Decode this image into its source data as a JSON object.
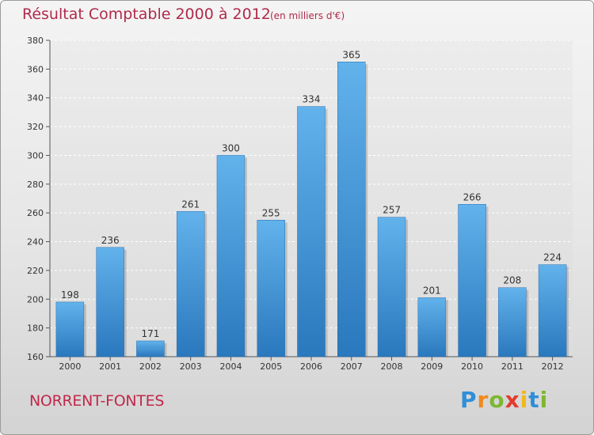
{
  "title": "Résultat Comptable 2000 à 2012",
  "subtitle": "(en milliers d'€)",
  "commune": "NORRENT-FONTES",
  "logo": {
    "letters": [
      "P",
      "r",
      "o",
      "x",
      "i",
      "t",
      "i"
    ],
    "colors": [
      "#2f8fd8",
      "#f08a1c",
      "#7cb82f",
      "#e23b2e",
      "#f0b81c",
      "#2f8fd8",
      "#7cb82f"
    ]
  },
  "chart_data": {
    "type": "bar",
    "title": "Résultat Comptable 2000 à 2012",
    "subtitle": "(en milliers d'€)",
    "categories": [
      "2000",
      "2001",
      "2002",
      "2003",
      "2004",
      "2005",
      "2006",
      "2007",
      "2008",
      "2009",
      "2010",
      "2011",
      "2012"
    ],
    "values": [
      198,
      236,
      171,
      261,
      300,
      255,
      334,
      365,
      257,
      201,
      266,
      208,
      224
    ],
    "ylim": [
      160,
      380
    ],
    "yticks": [
      160,
      180,
      200,
      220,
      240,
      260,
      280,
      300,
      320,
      340,
      360,
      380
    ],
    "xlabel": "",
    "ylabel": "",
    "grid": true,
    "bar_color": "#3d8fd6"
  }
}
